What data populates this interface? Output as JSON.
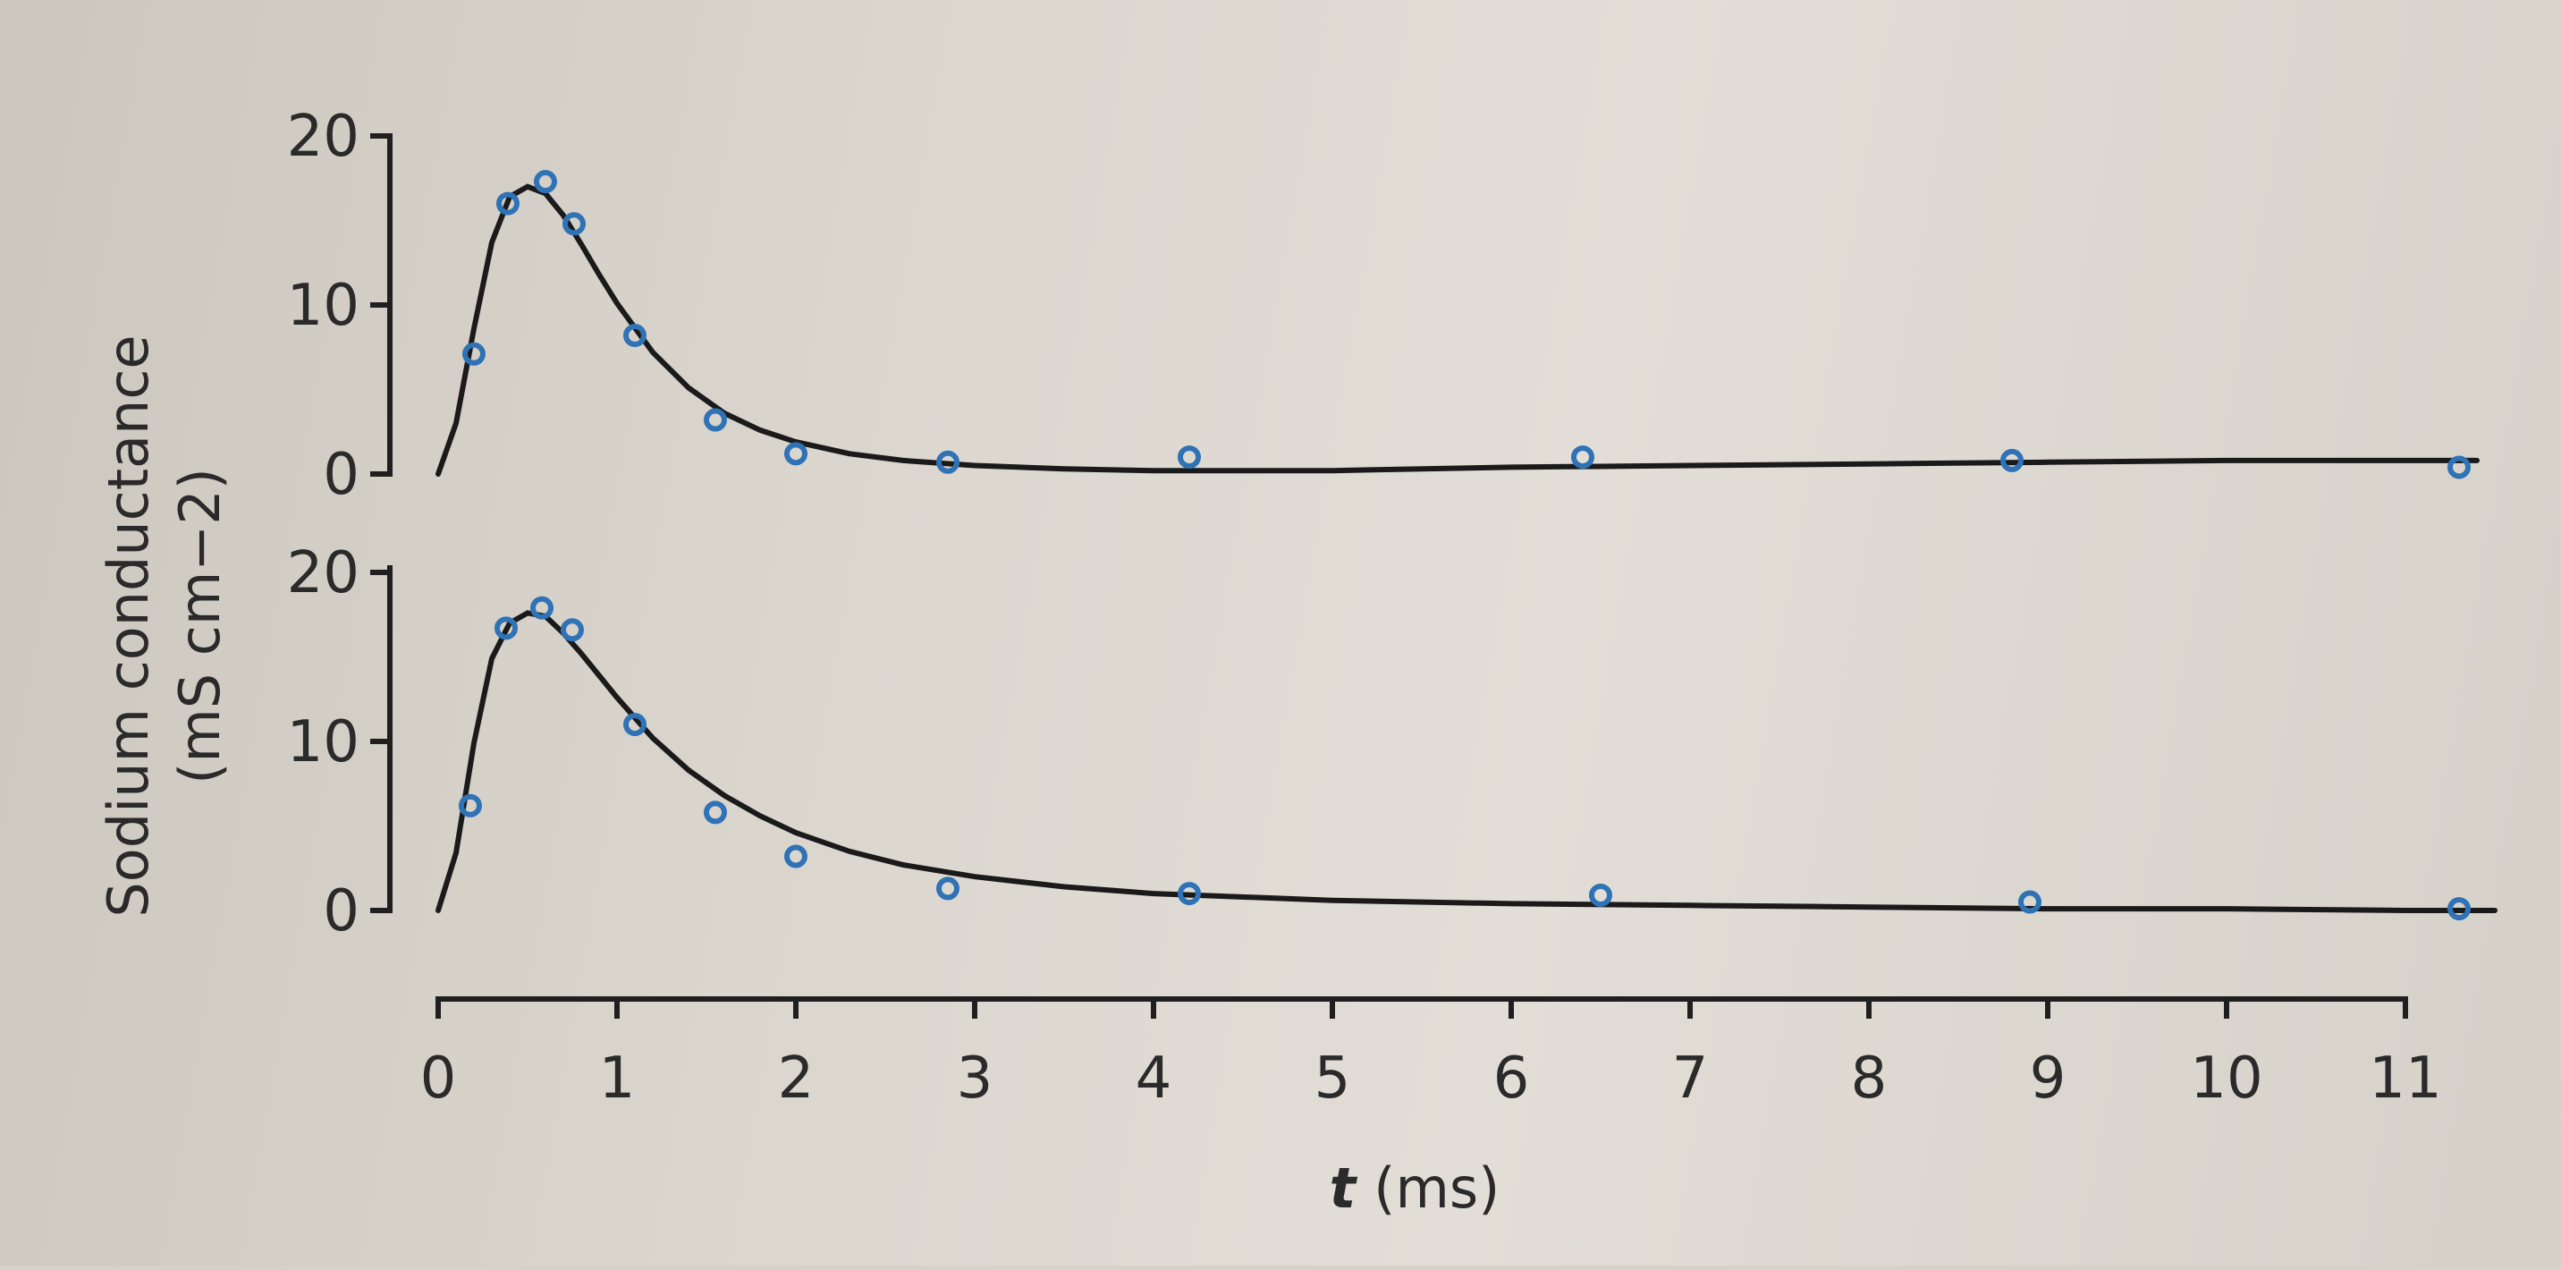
{
  "chart_data": {
    "type": "scatter",
    "ylabel_line1": "Sodium conductance",
    "ylabel_line2": "(mS cm−2)",
    "xlabel_italic": "t",
    "xlabel_unit": "(ms)",
    "xlim": [
      0,
      11
    ],
    "ylim": [
      0,
      20
    ],
    "xticks": [
      "0",
      "1",
      "2",
      "3",
      "4",
      "5",
      "6",
      "7",
      "8",
      "9",
      "10",
      "11"
    ],
    "yticks": [
      "0",
      "10",
      "20"
    ],
    "colors": {
      "points": "#2f72b5",
      "curve": "#1a1a1a"
    },
    "panels": [
      {
        "points": {
          "x": [
            0.2,
            0.39,
            0.6,
            0.76,
            1.1,
            1.55,
            2.0,
            2.85,
            4.2,
            6.4,
            8.8,
            11.3
          ],
          "y": [
            7.1,
            16.0,
            17.3,
            14.8,
            8.2,
            3.2,
            1.2,
            0.7,
            1.0,
            1.0,
            0.8,
            0.4
          ]
        },
        "curve": {
          "x": [
            0,
            0.1,
            0.2,
            0.3,
            0.4,
            0.5,
            0.6,
            0.7,
            0.8,
            0.9,
            1.0,
            1.2,
            1.4,
            1.6,
            1.8,
            2.0,
            2.3,
            2.6,
            3.0,
            3.5,
            4.0,
            5.0,
            6.0,
            7.0,
            8.0,
            9.0,
            10.0,
            11.0,
            11.4
          ],
          "y": [
            0,
            3.0,
            8.6,
            13.7,
            16.4,
            17.0,
            16.6,
            15.3,
            13.6,
            11.8,
            10.1,
            7.2,
            5.1,
            3.6,
            2.6,
            1.9,
            1.2,
            0.8,
            0.5,
            0.3,
            0.2,
            0.2,
            0.4,
            0.5,
            0.6,
            0.7,
            0.8,
            0.8,
            0.8
          ]
        }
      },
      {
        "points": {
          "x": [
            0.18,
            0.38,
            0.58,
            0.75,
            1.1,
            1.55,
            2.0,
            2.85,
            4.2,
            6.5,
            8.9,
            11.3
          ],
          "y": [
            6.2,
            16.7,
            17.9,
            16.6,
            11.0,
            5.8,
            3.2,
            1.3,
            1.0,
            0.9,
            0.5,
            0.1
          ]
        },
        "curve": {
          "x": [
            0,
            0.1,
            0.2,
            0.3,
            0.4,
            0.5,
            0.6,
            0.7,
            0.8,
            0.9,
            1.0,
            1.2,
            1.4,
            1.6,
            1.8,
            2.0,
            2.3,
            2.6,
            3.0,
            3.5,
            4.0,
            5.0,
            6.0,
            7.0,
            8.0,
            9.0,
            10.0,
            11.0,
            11.5
          ],
          "y": [
            0,
            3.4,
            9.9,
            14.9,
            17.0,
            17.6,
            17.4,
            16.4,
            15.2,
            13.9,
            12.6,
            10.2,
            8.3,
            6.8,
            5.6,
            4.6,
            3.5,
            2.7,
            2.0,
            1.4,
            1.0,
            0.6,
            0.4,
            0.3,
            0.2,
            0.1,
            0.1,
            0.0,
            0.0
          ]
        }
      }
    ]
  }
}
